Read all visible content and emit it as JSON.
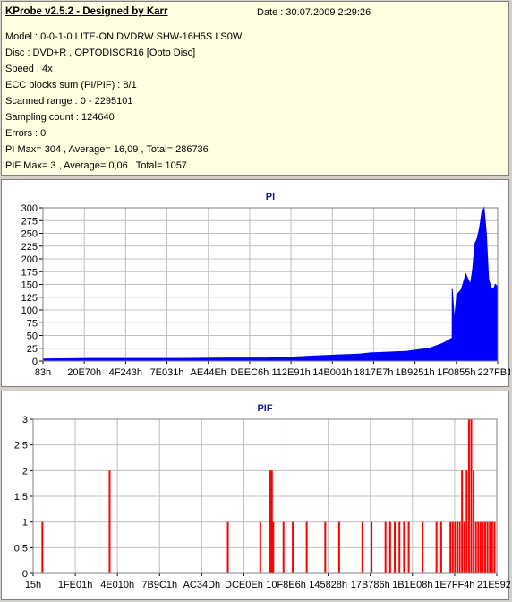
{
  "app": {
    "title": "KProbe v2.5.2 - Designed by Karr",
    "date": "Date : 30.07.2009 2:29:26"
  },
  "info": {
    "model": "Model : 0-0-1-0 LITE-ON DVDRW SHW-16H5S  LS0W",
    "disc": "Disc : DVD+R , OPTODISCR16 [Opto Disc]",
    "speed": "Speed : 4x",
    "ecc": "ECC blocks sum (PI/PIF) : 8/1",
    "range": "Scanned range : 0 - 2295101",
    "sampling": "Sampling count : 124640",
    "errors": "Errors : 0",
    "pi_stats": "PI Max= 304 , Average= 16,09 , Total= 286736",
    "pif_stats": "PIF Max= 3 , Average= 0,06 , Total= 1057"
  },
  "colors": {
    "pi_series": "#0000ff",
    "pif_series": "#ff0000",
    "grid": "#c0c0c0",
    "panel_bg": "#ffffe1"
  },
  "chart_data": [
    {
      "type": "area",
      "title": "PI",
      "ylim": [
        0,
        300
      ],
      "yticks": [
        "0",
        "25",
        "50",
        "75",
        "100",
        "125",
        "150",
        "175",
        "200",
        "225",
        "250",
        "275",
        "300"
      ],
      "xticks": [
        "83h",
        "20E70h",
        "4F243h",
        "7E031h",
        "AE44Eh",
        "DEEC6h",
        "112E91h",
        "14B001h",
        "1817E7h",
        "1B9251h",
        "1F0855h",
        "227FB1h"
      ],
      "grid": true,
      "x_unit": "fraction of scanned range",
      "series": [
        {
          "x": [
            0.0,
            0.1,
            0.2,
            0.3,
            0.4,
            0.5,
            0.52,
            0.55,
            0.6,
            0.65,
            0.68,
            0.7,
            0.72,
            0.75,
            0.8,
            0.85,
            0.88,
            0.89,
            0.9,
            0.9,
            0.905,
            0.91,
            0.92,
            0.93,
            0.94,
            0.945,
            0.95,
            0.955,
            0.96,
            0.965,
            0.97,
            0.975,
            0.98,
            0.985,
            0.99,
            0.995,
            1.0
          ],
          "values": [
            4,
            5,
            5,
            5,
            6,
            6,
            7,
            8,
            10,
            12,
            13,
            14,
            16,
            17,
            19,
            25,
            35,
            40,
            45,
            140,
            80,
            130,
            140,
            170,
            150,
            180,
            230,
            240,
            260,
            290,
            300,
            250,
            160,
            145,
            140,
            150,
            145
          ]
        }
      ]
    },
    {
      "type": "bar",
      "title": "PIF",
      "ylim": [
        0,
        3
      ],
      "yticks": [
        "0",
        "0,5",
        "1",
        "1,5",
        "2",
        "2,5",
        "3"
      ],
      "xticks": [
        "15h",
        "1FE01h",
        "4E010h",
        "7B9C1h",
        "AC34Dh",
        "DCE0Eh",
        "10F8E6h",
        "145828h",
        "17B786h",
        "1B1E08h",
        "1E7FF4h",
        "21E592h"
      ],
      "grid": true,
      "x_unit": "fraction of scanned range",
      "series": [
        {
          "x": [
            0.02,
            0.165,
            0.42,
            0.49,
            0.51,
            0.512,
            0.515,
            0.518,
            0.54,
            0.56,
            0.59,
            0.63,
            0.66,
            0.71,
            0.73,
            0.76,
            0.77,
            0.78,
            0.79,
            0.8,
            0.81,
            0.84,
            0.87,
            0.88,
            0.9,
            0.905,
            0.91,
            0.915,
            0.92,
            0.925,
            0.93,
            0.935,
            0.94,
            0.945,
            0.95,
            0.955,
            0.96,
            0.965,
            0.97,
            0.975,
            0.98,
            0.985,
            0.99,
            0.995
          ],
          "values": [
            1,
            2,
            1,
            1,
            2,
            2,
            2,
            1,
            1,
            1,
            1,
            1,
            1,
            1,
            1,
            1,
            1,
            1,
            1,
            1,
            1,
            1,
            1,
            1,
            1,
            1,
            1,
            1,
            1,
            2,
            1,
            2,
            3,
            3,
            2,
            1,
            1,
            1,
            1,
            1,
            1,
            1,
            1,
            1
          ]
        }
      ]
    }
  ]
}
